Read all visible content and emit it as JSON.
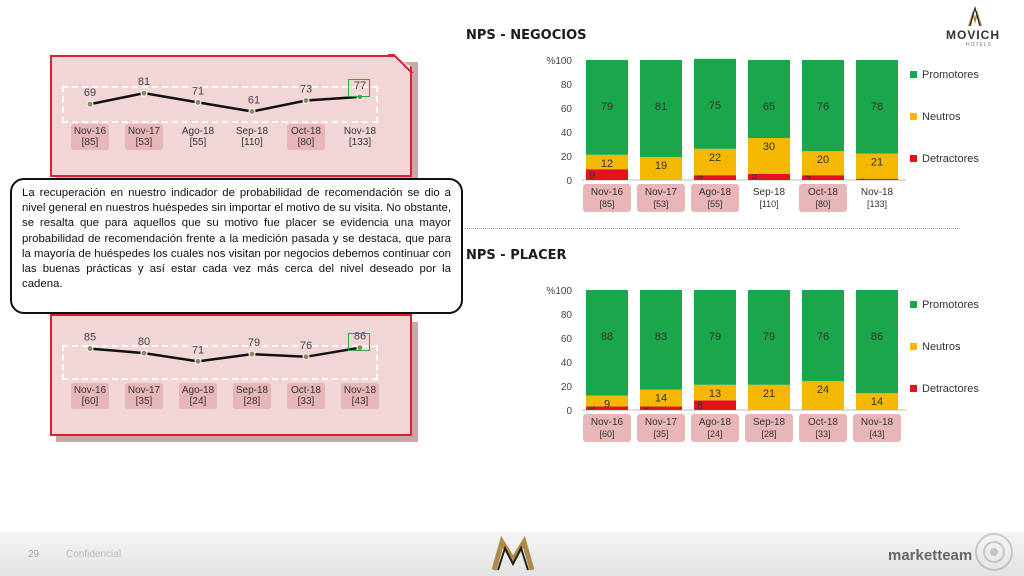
{
  "colors": {
    "promotores": "#1aa64a",
    "neutros": "#f5b800",
    "detractores": "#e3131b",
    "line": "#111111",
    "accent_red": "#d9232d"
  },
  "header": {
    "brand": "MOVICH",
    "brand_sub": "HOTELS"
  },
  "titles": {
    "negocios": "NPS - NEGOCIOS",
    "placer": "NPS - PLACER"
  },
  "textbox": "La recuperación en nuestro indicador de probabilidad de recomendación se dio a nivel general en nuestros huéspedes sin importar el motivo de su visita. No obstante, se resalta que para aquellos que su motivo fue placer se evidencia una mayor probabilidad de recomendación frente a la medición pasada y se destaca, que para la mayoría de huéspedes los cuales nos visitan por negocios debemos continuar con las buenas prácticas y así estar cada vez más cerca del nivel deseado por la cadena.",
  "footer": {
    "page": "29",
    "label": "Confidencial",
    "agency": "marketteam"
  },
  "chart_data": [
    {
      "type": "line",
      "name": "negocios-nps",
      "categories": [
        "Nov-16",
        "Nov-17",
        "Ago-18",
        "Sep-18",
        "Oct-18",
        "Nov-18"
      ],
      "bases": [
        "[85]",
        "[53]",
        "[55]",
        "[110]",
        "[80]",
        "[133]"
      ],
      "values": [
        69,
        81,
        71,
        61,
        73,
        77
      ]
    },
    {
      "type": "line",
      "name": "placer-nps",
      "categories": [
        "Nov-16",
        "Nov-17",
        "Ago-18",
        "Sep-18",
        "Oct-18",
        "Nov-18"
      ],
      "bases": [
        "[60]",
        "[35]",
        "[24]",
        "[28]",
        "[33]",
        "[43]"
      ],
      "values": [
        85,
        80,
        71,
        79,
        76,
        86
      ]
    },
    {
      "type": "bar",
      "stacked": true,
      "title": "NPS - NEGOCIOS",
      "ylabel": "%",
      "ylim": [
        0,
        100
      ],
      "yticks": [
        "0",
        "20",
        "40",
        "60",
        "80",
        "100"
      ],
      "categories": [
        "Nov-16",
        "Nov-17",
        "Ago-18",
        "Sep-18",
        "Oct-18",
        "Nov-18"
      ],
      "bases": [
        "[85]",
        "[53]",
        "[55]",
        "[110]",
        "[80]",
        "[133]"
      ],
      "series": [
        {
          "name": "Detractores",
          "values": [
            9,
            0,
            4,
            5,
            4,
            1
          ],
          "labels": [
            "9",
            "",
            "4",
            "5",
            "4",
            "1"
          ]
        },
        {
          "name": "Neutros",
          "values": [
            12,
            19,
            22,
            30,
            20,
            21
          ],
          "labels": [
            "12",
            "19",
            "22",
            "30",
            "20",
            "21"
          ]
        },
        {
          "name": "Promotores",
          "values": [
            79,
            81,
            75,
            65,
            76,
            78
          ],
          "labels": [
            "79",
            "81",
            "75",
            "65",
            "76",
            "78"
          ]
        }
      ],
      "legend": [
        "Promotores",
        "Neutros",
        "Detractores"
      ],
      "legend_position": "right"
    },
    {
      "type": "bar",
      "stacked": true,
      "title": "NPS - PLACER",
      "ylabel": "%",
      "ylim": [
        0,
        100
      ],
      "yticks": [
        "0",
        "20",
        "40",
        "60",
        "80",
        "100"
      ],
      "categories": [
        "Nov-16",
        "Nov-17",
        "Ago-18",
        "Sep-18",
        "Oct-18",
        "Nov-18"
      ],
      "bases": [
        "[60]",
        "[35]",
        "[24]",
        "[28]",
        "[33]",
        "[43]"
      ],
      "series": [
        {
          "name": "Detractores",
          "values": [
            3,
            3,
            8,
            0,
            0,
            0
          ],
          "labels": [
            "3",
            "3",
            "8",
            "",
            "",
            ""
          ]
        },
        {
          "name": "Neutros",
          "values": [
            9,
            14,
            13,
            21,
            24,
            14
          ],
          "labels": [
            "9",
            "14",
            "13",
            "21",
            "24",
            "14"
          ]
        },
        {
          "name": "Promotores",
          "values": [
            88,
            83,
            79,
            79,
            76,
            86
          ],
          "labels": [
            "88",
            "83",
            "79",
            "79",
            "76",
            "86"
          ]
        }
      ],
      "legend": [
        "Promotores",
        "Neutros",
        "Detractores"
      ],
      "legend_position": "right"
    }
  ]
}
